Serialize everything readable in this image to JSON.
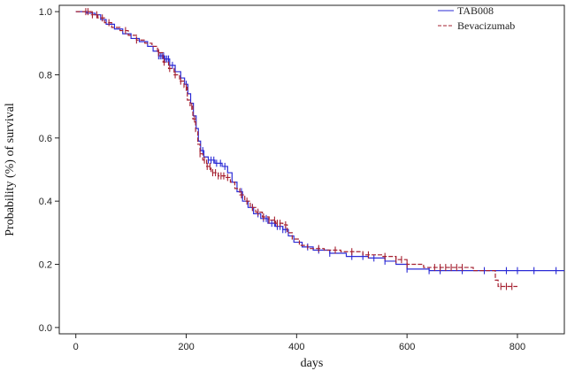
{
  "chart_data": {
    "type": "line",
    "title": "",
    "xlabel": "days",
    "ylabel": "Probability (%) of survival",
    "xlim": [
      -30,
      885
    ],
    "ylim": [
      -0.02,
      1.02
    ],
    "x_ticks": [
      {
        "value": 0,
        "label": "0"
      },
      {
        "value": 200,
        "label": "200"
      },
      {
        "value": 400,
        "label": "400"
      },
      {
        "value": 600,
        "label": "600"
      },
      {
        "value": 800,
        "label": "800"
      }
    ],
    "y_ticks": [
      {
        "value": 0.0,
        "label": "0.0"
      },
      {
        "value": 0.2,
        "label": "0.2"
      },
      {
        "value": 0.4,
        "label": "0.4"
      },
      {
        "value": 0.6,
        "label": "0.6"
      },
      {
        "value": 0.8,
        "label": "0.8"
      },
      {
        "value": 1.0,
        "label": "1.0"
      }
    ],
    "grid": false,
    "legend_position": "top-right",
    "series": [
      {
        "name": "TAB008",
        "color": "#2b2bd6",
        "line_style": "solid",
        "step": [
          [
            0,
            1.0
          ],
          [
            10,
            1.0
          ],
          [
            20,
            0.995
          ],
          [
            35,
            0.99
          ],
          [
            45,
            0.975
          ],
          [
            55,
            0.96
          ],
          [
            70,
            0.945
          ],
          [
            85,
            0.93
          ],
          [
            100,
            0.915
          ],
          [
            115,
            0.905
          ],
          [
            130,
            0.89
          ],
          [
            140,
            0.875
          ],
          [
            150,
            0.86
          ],
          [
            160,
            0.85
          ],
          [
            170,
            0.83
          ],
          [
            180,
            0.81
          ],
          [
            190,
            0.79
          ],
          [
            197,
            0.77
          ],
          [
            203,
            0.74
          ],
          [
            208,
            0.71
          ],
          [
            213,
            0.67
          ],
          [
            218,
            0.63
          ],
          [
            222,
            0.59
          ],
          [
            226,
            0.56
          ],
          [
            232,
            0.54
          ],
          [
            240,
            0.53
          ],
          [
            252,
            0.52
          ],
          [
            265,
            0.51
          ],
          [
            275,
            0.49
          ],
          [
            283,
            0.46
          ],
          [
            292,
            0.43
          ],
          [
            302,
            0.4
          ],
          [
            312,
            0.38
          ],
          [
            322,
            0.36
          ],
          [
            335,
            0.345
          ],
          [
            348,
            0.33
          ],
          [
            362,
            0.32
          ],
          [
            375,
            0.31
          ],
          [
            385,
            0.29
          ],
          [
            395,
            0.27
          ],
          [
            410,
            0.255
          ],
          [
            430,
            0.245
          ],
          [
            460,
            0.235
          ],
          [
            490,
            0.225
          ],
          [
            530,
            0.22
          ],
          [
            560,
            0.21
          ],
          [
            580,
            0.2
          ],
          [
            600,
            0.185
          ],
          [
            640,
            0.18
          ],
          [
            885,
            0.18
          ]
        ],
        "censor_x": [
          150,
          153,
          156,
          159,
          162,
          165,
          168,
          175,
          200,
          230,
          240,
          245,
          250,
          255,
          262,
          270,
          300,
          320,
          330,
          340,
          345,
          355,
          360,
          365,
          370,
          375,
          380,
          420,
          440,
          460,
          500,
          520,
          540,
          560,
          600,
          640,
          660,
          700,
          740,
          780,
          800,
          830,
          870
        ]
      },
      {
        "name": "Bevacizumab",
        "color": "#a52030",
        "line_style": "dashed",
        "step": [
          [
            0,
            1.0
          ],
          [
            15,
            1.0
          ],
          [
            28,
            0.99
          ],
          [
            40,
            0.98
          ],
          [
            52,
            0.965
          ],
          [
            65,
            0.95
          ],
          [
            80,
            0.94
          ],
          [
            95,
            0.925
          ],
          [
            110,
            0.91
          ],
          [
            125,
            0.9
          ],
          [
            138,
            0.89
          ],
          [
            148,
            0.87
          ],
          [
            158,
            0.84
          ],
          [
            168,
            0.82
          ],
          [
            178,
            0.8
          ],
          [
            188,
            0.78
          ],
          [
            196,
            0.76
          ],
          [
            202,
            0.72
          ],
          [
            207,
            0.7
          ],
          [
            212,
            0.66
          ],
          [
            217,
            0.62
          ],
          [
            221,
            0.58
          ],
          [
            225,
            0.55
          ],
          [
            230,
            0.53
          ],
          [
            237,
            0.51
          ],
          [
            245,
            0.49
          ],
          [
            258,
            0.48
          ],
          [
            272,
            0.475
          ],
          [
            280,
            0.46
          ],
          [
            288,
            0.44
          ],
          [
            297,
            0.42
          ],
          [
            306,
            0.4
          ],
          [
            316,
            0.38
          ],
          [
            326,
            0.365
          ],
          [
            338,
            0.35
          ],
          [
            350,
            0.34
          ],
          [
            362,
            0.33
          ],
          [
            375,
            0.325
          ],
          [
            383,
            0.3
          ],
          [
            392,
            0.28
          ],
          [
            405,
            0.26
          ],
          [
            420,
            0.25
          ],
          [
            450,
            0.245
          ],
          [
            480,
            0.24
          ],
          [
            520,
            0.23
          ],
          [
            555,
            0.225
          ],
          [
            580,
            0.215
          ],
          [
            600,
            0.2
          ],
          [
            630,
            0.19
          ],
          [
            660,
            0.19
          ],
          [
            700,
            0.19
          ],
          [
            720,
            0.18
          ],
          [
            760,
            0.15
          ],
          [
            765,
            0.13
          ],
          [
            800,
            0.13
          ]
        ],
        "censor_x": [
          18,
          22,
          30,
          38,
          48,
          60,
          90,
          110,
          150,
          160,
          170,
          180,
          190,
          200,
          210,
          215,
          225,
          233,
          238,
          243,
          248,
          253,
          258,
          263,
          268,
          275,
          300,
          310,
          320,
          330,
          340,
          350,
          360,
          365,
          370,
          380,
          440,
          470,
          500,
          530,
          560,
          580,
          590,
          600,
          650,
          660,
          670,
          680,
          690,
          700,
          770,
          780,
          790
        ]
      }
    ]
  }
}
